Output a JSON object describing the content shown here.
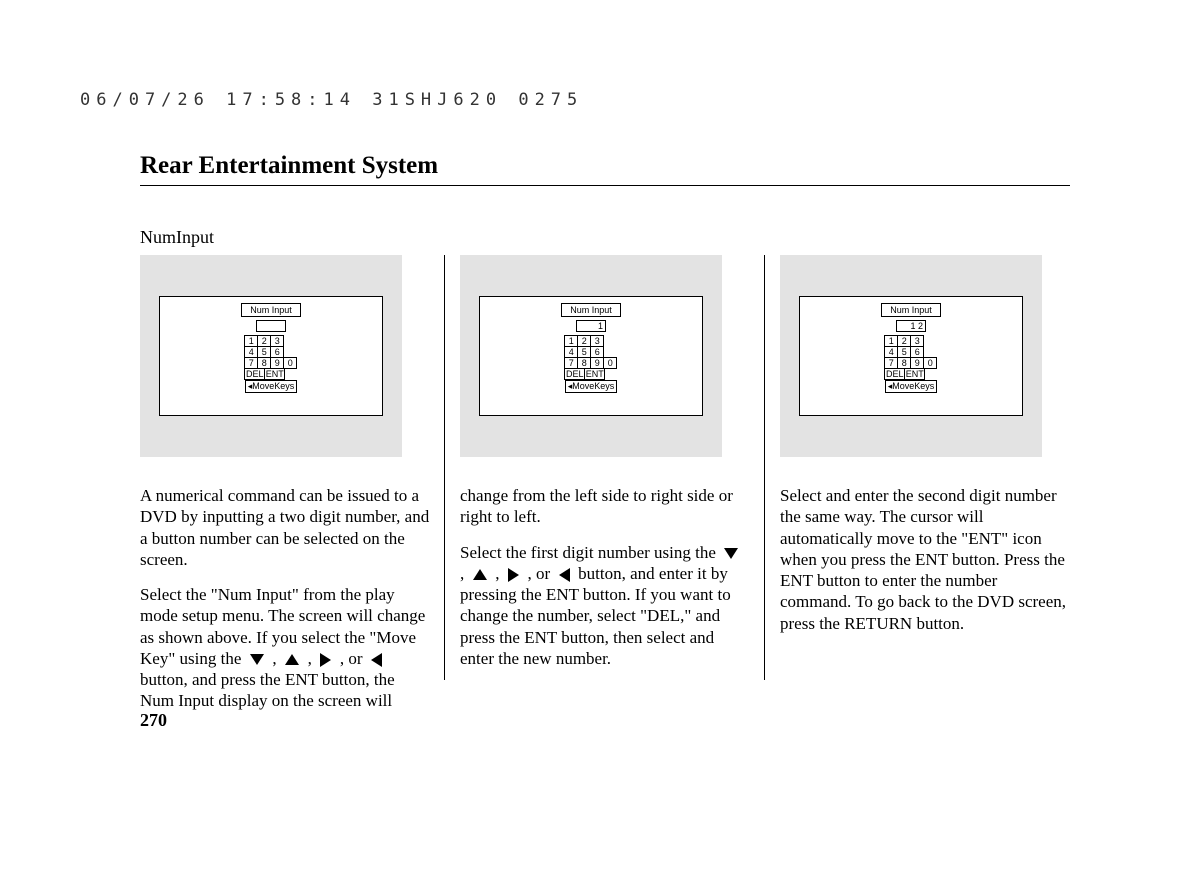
{
  "header_stamp": "06/07/26 17:58:14 31SHJ620 0275",
  "title": "Rear Entertainment System",
  "subheading": "NumInput",
  "page_number": "270",
  "screens": {
    "label": "Num Input",
    "movekeys": "◂MoveKeys",
    "keys_row1": [
      "1",
      "2",
      "3"
    ],
    "keys_row2": [
      "4",
      "5",
      "6"
    ],
    "keys_row3": [
      "7",
      "8",
      "9",
      "0"
    ],
    "keys_row4": [
      "DEL",
      "ENT"
    ],
    "values": [
      "",
      "1",
      "1 2"
    ]
  },
  "col1": {
    "p1": "A numerical command can be issued to a DVD by inputting a two digit number, and a button number can be selected on the screen.",
    "p2a": "Select the \"Num Input\" from the play mode setup menu. The screen will change as shown above. If you select the \"Move Key\" using the ",
    "p2b": " button, and press the ENT button, the Num Input display on the screen will"
  },
  "col2": {
    "p1": "change from the left side to right side or right to left.",
    "p2a": "Select the first digit number using the ",
    "p2b": " button, and enter it by pressing the ENT button. If you want to change the number, select \"DEL,\" and press the ENT button, then select and enter the new number."
  },
  "col3": {
    "p1": "Select and enter the second digit number the same way. The cursor will automatically move to the \"ENT\" icon when you press the ENT button. Press the ENT button to enter the number command. To go back to the DVD screen, press the RETURN button."
  }
}
